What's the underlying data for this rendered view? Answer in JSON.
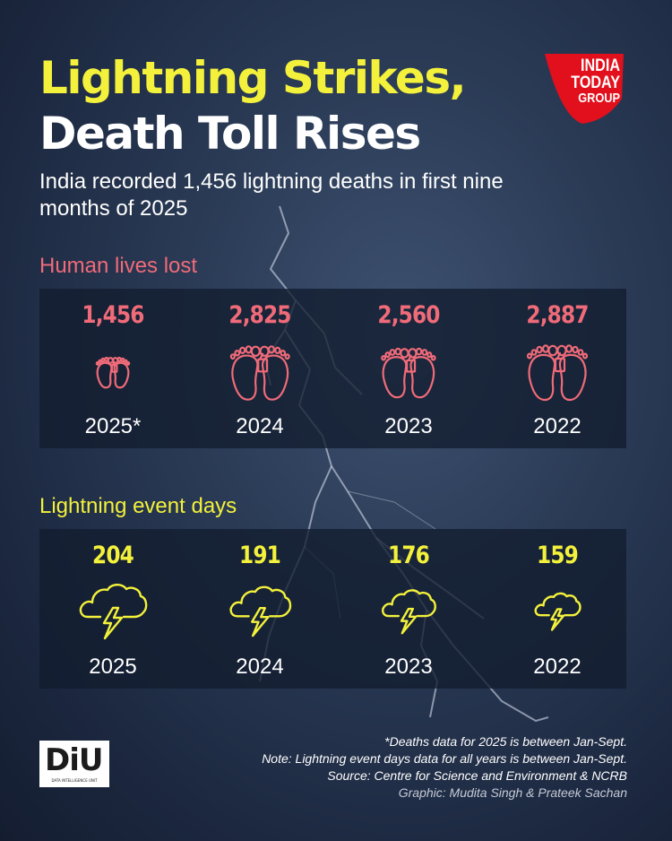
{
  "title_line1": "Lightning Strikes,",
  "title_line2": "Death Toll Rises",
  "subtitle": "India recorded 1,456 lightning deaths in first nine months of 2025",
  "logo": {
    "line1": "INDIA",
    "line2": "TODAY",
    "line3": "GROUP"
  },
  "colors": {
    "deaths": "#f06b79",
    "events": "#f3f13b",
    "logo_red": "#e2101c"
  },
  "chart_data": [
    {
      "type": "pictograph",
      "title": "Human lives lost",
      "icon": "footprints-icon",
      "categories": [
        "2025*",
        "2024",
        "2023",
        "2022"
      ],
      "values": [
        1456,
        2825,
        2560,
        2887
      ],
      "labels": [
        "1,456",
        "2,825",
        "2,560",
        "2,887"
      ]
    },
    {
      "type": "pictograph",
      "title": "Lightning event days",
      "icon": "storm-cloud-icon",
      "categories": [
        "2025",
        "2024",
        "2023",
        "2022"
      ],
      "values": [
        204,
        191,
        176,
        159
      ],
      "labels": [
        "204",
        "191",
        "176",
        "159"
      ]
    }
  ],
  "footnotes": [
    "*Deaths data for 2025 is between Jan-Sept.",
    "Note: Lightning event days data for all years is between Jan-Sept.",
    "Source: Centre for Science and Environment & NCRB"
  ],
  "credit": "Graphic: Mudita Singh & Prateek Sachan",
  "diu_logo": {
    "text": "DiU",
    "sub": "DATA INTELLIGENCE UNIT"
  }
}
